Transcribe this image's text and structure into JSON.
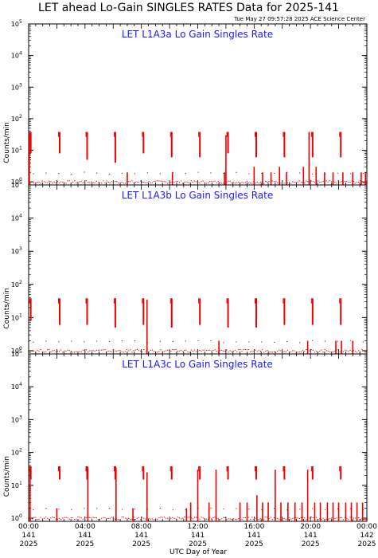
{
  "figure": {
    "title": "LET ahead Lo-Gain SINGLES RATES Data for 2025-141",
    "timestamp": "Tue May 27 09:57:28 2025 ACE Science Center",
    "xlabel": "UTC Day of Year",
    "colors": {
      "panel_title": "#1a1aff",
      "data": "#ee0000",
      "axes": "#000000"
    }
  },
  "chart_data": [
    {
      "type": "line",
      "title": "LET L1A3a Lo Gain Singles Rate",
      "ylabel": "Counts/min",
      "yscale": "log",
      "ylim": [
        0.8,
        100000
      ],
      "y_ticks": [
        {
          "v": 1,
          "exp": "0"
        },
        {
          "v": 10,
          "exp": "1"
        },
        {
          "v": 100,
          "exp": "2"
        },
        {
          "v": 1000,
          "exp": "3"
        },
        {
          "v": 10000,
          "exp": "4"
        },
        {
          "v": 100000,
          "exp": "5"
        }
      ],
      "xlim": [
        0,
        24
      ],
      "x_ticks": [
        {
          "hour": 0,
          "time": "00:00",
          "doy": "141",
          "year": "2025"
        },
        {
          "hour": 4,
          "time": "04:00",
          "doy": "141",
          "year": "2025"
        },
        {
          "hour": 8,
          "time": "08:00",
          "doy": "141",
          "year": "2025"
        },
        {
          "hour": 12,
          "time": "12:00",
          "doy": "141",
          "year": "2025"
        },
        {
          "hour": 16,
          "time": "16:00",
          "doy": "141",
          "year": "2025"
        },
        {
          "hour": 20,
          "time": "20:00",
          "doy": "141",
          "year": "2025"
        },
        {
          "hour": 24,
          "time": "00:00",
          "doy": "142",
          "year": "2025"
        }
      ],
      "calibration_spikes": [
        {
          "hour": 0.15,
          "top": 38,
          "bottom": 8
        },
        {
          "hour": 2.2,
          "top": 38,
          "bottom": 8
        },
        {
          "hour": 4.15,
          "top": 38,
          "bottom": 5
        },
        {
          "hour": 6.15,
          "top": 38,
          "bottom": 4
        },
        {
          "hour": 8.15,
          "top": 38,
          "bottom": 8
        },
        {
          "hour": 10.15,
          "top": 38,
          "bottom": 6
        },
        {
          "hour": 12.15,
          "top": 38,
          "bottom": 6
        },
        {
          "hour": 14.15,
          "top": 38,
          "bottom": 8
        },
        {
          "hour": 16.15,
          "top": 38,
          "bottom": 6
        },
        {
          "hour": 18.15,
          "top": 38,
          "bottom": 6
        },
        {
          "hour": 20.15,
          "top": 38,
          "bottom": 6
        },
        {
          "hour": 22.15,
          "top": 38,
          "bottom": 6
        }
      ],
      "bursts": [
        {
          "hour": 0.05,
          "top": 35
        },
        {
          "hour": 7.0,
          "top": 2
        },
        {
          "hour": 10.2,
          "top": 2
        },
        {
          "hour": 13.9,
          "top": 2
        },
        {
          "hour": 14.0,
          "top": 30
        },
        {
          "hour": 16.0,
          "top": 3
        },
        {
          "hour": 16.6,
          "top": 2
        },
        {
          "hour": 17.2,
          "top": 2
        },
        {
          "hour": 17.8,
          "top": 3
        },
        {
          "hour": 18.3,
          "top": 2
        },
        {
          "hour": 19.5,
          "top": 3
        },
        {
          "hour": 19.9,
          "top": 38
        },
        {
          "hour": 20.4,
          "top": 3
        },
        {
          "hour": 21.0,
          "top": 2
        },
        {
          "hour": 21.6,
          "top": 2
        },
        {
          "hour": 22.3,
          "top": 2
        },
        {
          "hour": 23.0,
          "top": 2
        },
        {
          "hour": 23.6,
          "top": 2
        },
        {
          "hour": 23.9,
          "top": 2
        }
      ]
    },
    {
      "type": "line",
      "title": "LET L1A3b Lo Gain Singles Rate",
      "ylabel": "Counts/min",
      "yscale": "log",
      "ylim": [
        0.8,
        100000
      ],
      "y_ticks": [
        {
          "v": 1,
          "exp": "0"
        },
        {
          "v": 10,
          "exp": "1"
        },
        {
          "v": 100,
          "exp": "2"
        },
        {
          "v": 1000,
          "exp": "3"
        },
        {
          "v": 10000,
          "exp": "4"
        },
        {
          "v": 100000,
          "exp": "5"
        }
      ],
      "xlim": [
        0,
        24
      ],
      "x_ticks": [
        {
          "hour": 0,
          "time": "00:00",
          "doy": "141",
          "year": "2025"
        },
        {
          "hour": 4,
          "time": "04:00",
          "doy": "141",
          "year": "2025"
        },
        {
          "hour": 8,
          "time": "08:00",
          "doy": "141",
          "year": "2025"
        },
        {
          "hour": 12,
          "time": "12:00",
          "doy": "141",
          "year": "2025"
        },
        {
          "hour": 16,
          "time": "16:00",
          "doy": "141",
          "year": "2025"
        },
        {
          "hour": 20,
          "time": "20:00",
          "doy": "141",
          "year": "2025"
        },
        {
          "hour": 24,
          "time": "00:00",
          "doy": "142",
          "year": "2025"
        }
      ],
      "calibration_spikes": [
        {
          "hour": 0.15,
          "top": 38,
          "bottom": 8
        },
        {
          "hour": 2.2,
          "top": 38,
          "bottom": 6
        },
        {
          "hour": 4.15,
          "top": 38,
          "bottom": 6
        },
        {
          "hour": 6.15,
          "top": 38,
          "bottom": 5
        },
        {
          "hour": 8.15,
          "top": 38,
          "bottom": 6
        },
        {
          "hour": 10.15,
          "top": 38,
          "bottom": 5
        },
        {
          "hour": 12.15,
          "top": 38,
          "bottom": 6
        },
        {
          "hour": 14.15,
          "top": 38,
          "bottom": 5
        },
        {
          "hour": 16.15,
          "top": 38,
          "bottom": 5
        },
        {
          "hour": 18.15,
          "top": 38,
          "bottom": 6
        },
        {
          "hour": 20.15,
          "top": 38,
          "bottom": 6
        },
        {
          "hour": 22.15,
          "top": 38,
          "bottom": 6
        }
      ],
      "bursts": [
        {
          "hour": 8.4,
          "top": 35
        },
        {
          "hour": 13.5,
          "top": 2
        },
        {
          "hour": 19.8,
          "top": 2
        },
        {
          "hour": 21.8,
          "top": 2
        },
        {
          "hour": 22.2,
          "top": 2
        },
        {
          "hour": 23.0,
          "top": 2
        }
      ]
    },
    {
      "type": "line",
      "title": "LET L1A3c Lo Gain Singles Rate",
      "ylabel": "Counts/min",
      "yscale": "log",
      "ylim": [
        0.8,
        100000
      ],
      "y_ticks": [
        {
          "v": 1,
          "exp": "0"
        },
        {
          "v": 10,
          "exp": "1"
        },
        {
          "v": 100,
          "exp": "2"
        },
        {
          "v": 1000,
          "exp": "3"
        },
        {
          "v": 10000,
          "exp": "4"
        },
        {
          "v": 100000,
          "exp": "5"
        }
      ],
      "xlim": [
        0,
        24
      ],
      "x_ticks": [
        {
          "hour": 0,
          "time": "00:00",
          "doy": "141",
          "year": "2025"
        },
        {
          "hour": 4,
          "time": "04:00",
          "doy": "141",
          "year": "2025"
        },
        {
          "hour": 8,
          "time": "08:00",
          "doy": "141",
          "year": "2025"
        },
        {
          "hour": 12,
          "time": "12:00",
          "doy": "141",
          "year": "2025"
        },
        {
          "hour": 16,
          "time": "16:00",
          "doy": "141",
          "year": "2025"
        },
        {
          "hour": 20,
          "time": "20:00",
          "doy": "141",
          "year": "2025"
        },
        {
          "hour": 24,
          "time": "00:00",
          "doy": "142",
          "year": "2025"
        }
      ],
      "calibration_spikes": [
        {
          "hour": 0.15,
          "top": 38,
          "bottom": 15
        },
        {
          "hour": 2.2,
          "top": 38,
          "bottom": 15
        },
        {
          "hour": 4.15,
          "top": 38,
          "bottom": 15
        },
        {
          "hour": 6.15,
          "top": 38,
          "bottom": 15
        },
        {
          "hour": 8.15,
          "top": 38,
          "bottom": 15
        },
        {
          "hour": 10.15,
          "top": 38,
          "bottom": 15
        },
        {
          "hour": 12.15,
          "top": 38,
          "bottom": 15
        },
        {
          "hour": 14.15,
          "top": 38,
          "bottom": 15
        },
        {
          "hour": 16.15,
          "top": 38,
          "bottom": 15
        },
        {
          "hour": 18.15,
          "top": 38,
          "bottom": 15
        },
        {
          "hour": 20.15,
          "top": 38,
          "bottom": 15
        },
        {
          "hour": 22.15,
          "top": 38,
          "bottom": 15
        }
      ],
      "bursts": [
        {
          "hour": 0.1,
          "top": 30
        },
        {
          "hour": 2.0,
          "top": 2
        },
        {
          "hour": 4.2,
          "top": 35
        },
        {
          "hour": 6.2,
          "top": 35
        },
        {
          "hour": 7.4,
          "top": 2
        },
        {
          "hour": 8.4,
          "top": 25
        },
        {
          "hour": 11.2,
          "top": 2
        },
        {
          "hour": 11.5,
          "top": 3
        },
        {
          "hour": 12.0,
          "top": 30
        },
        {
          "hour": 12.8,
          "top": 3
        },
        {
          "hour": 13.3,
          "top": 30
        },
        {
          "hour": 15.0,
          "top": 3
        },
        {
          "hour": 15.5,
          "top": 3
        },
        {
          "hour": 16.2,
          "top": 5
        },
        {
          "hour": 16.6,
          "top": 3
        },
        {
          "hour": 17.0,
          "top": 3
        },
        {
          "hour": 17.5,
          "top": 30
        },
        {
          "hour": 17.9,
          "top": 3
        },
        {
          "hour": 18.4,
          "top": 3
        },
        {
          "hour": 18.9,
          "top": 3
        },
        {
          "hour": 19.4,
          "top": 3
        },
        {
          "hour": 19.8,
          "top": 30
        },
        {
          "hour": 20.3,
          "top": 3
        },
        {
          "hour": 20.7,
          "top": 3
        },
        {
          "hour": 21.2,
          "top": 3
        },
        {
          "hour": 21.6,
          "top": 3
        },
        {
          "hour": 22.0,
          "top": 3
        },
        {
          "hour": 22.5,
          "top": 3
        },
        {
          "hour": 22.9,
          "top": 3
        },
        {
          "hour": 23.3,
          "top": 3
        },
        {
          "hour": 23.7,
          "top": 3
        }
      ]
    }
  ]
}
